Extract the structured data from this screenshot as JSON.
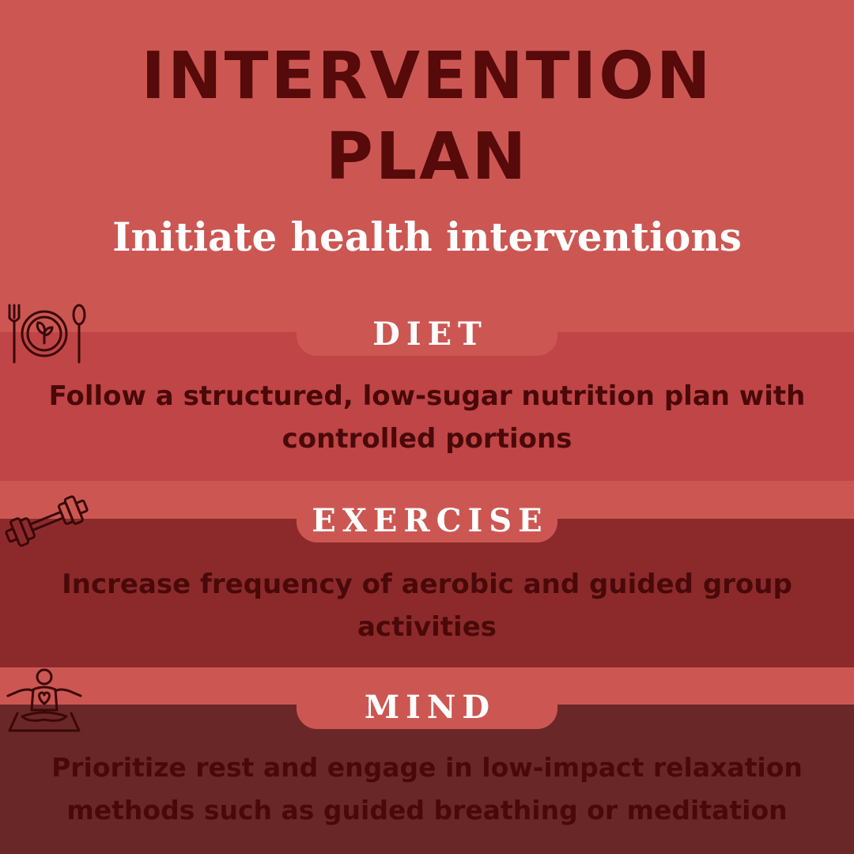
{
  "header": {
    "title_line1": "INTERVENTION",
    "title_line2": "PLAN",
    "subtitle": "Initiate health interventions"
  },
  "sections": [
    {
      "label": "DIET",
      "text": "Follow a structured, low-sugar nutrition plan with controlled portions",
      "icon": "plate-fork-spoon-icon",
      "band_color": "#c04546"
    },
    {
      "label": "EXERCISE",
      "text": "Increase frequency of aerobic and guided group activities",
      "icon": "dumbbell-icon",
      "band_color": "#8c2a2b"
    },
    {
      "label": "MIND",
      "text": "Prioritize rest and engage in low-impact relaxation methods such as guided breathing or meditation",
      "icon": "meditation-heart-icon",
      "band_color": "#6a2728"
    }
  ],
  "colors": {
    "background": "#cc5752",
    "title": "#560a0a",
    "body_text": "#4a0909",
    "pill_text": "#ffffff"
  }
}
